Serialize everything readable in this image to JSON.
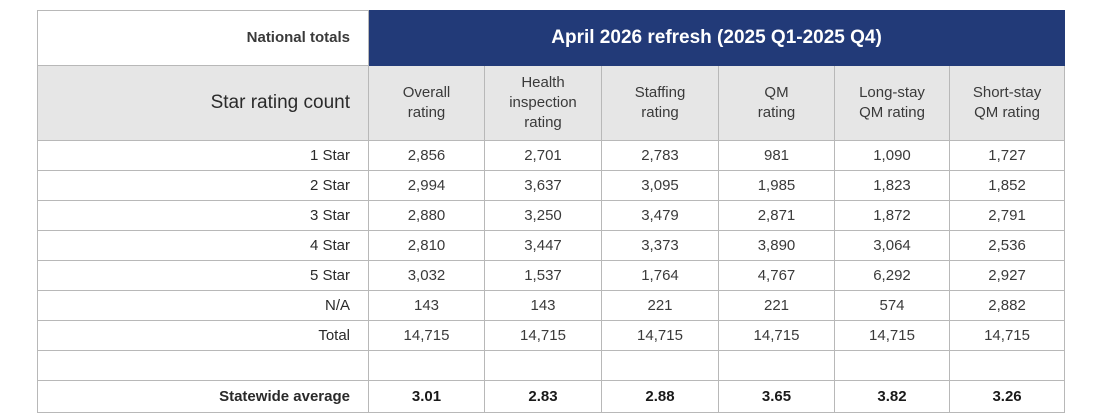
{
  "header": {
    "group_label": "National totals",
    "period_label": "April 2026 refresh (2025 Q1-2025 Q4)",
    "row_header": "Star rating count",
    "columns": [
      [
        "Overall",
        "rating"
      ],
      [
        "Health",
        "inspection",
        "rating"
      ],
      [
        "Staffing",
        "rating"
      ],
      [
        "QM",
        "rating"
      ],
      [
        "Long-stay",
        "QM rating"
      ],
      [
        "Short-stay",
        "QM rating"
      ]
    ]
  },
  "rows": [
    {
      "label": "1 Star",
      "values": [
        "2,856",
        "2,701",
        "2,783",
        "981",
        "1,090",
        "1,727"
      ]
    },
    {
      "label": "2 Star",
      "values": [
        "2,994",
        "3,637",
        "3,095",
        "1,985",
        "1,823",
        "1,852"
      ]
    },
    {
      "label": "3 Star",
      "values": [
        "2,880",
        "3,250",
        "3,479",
        "2,871",
        "1,872",
        "2,791"
      ]
    },
    {
      "label": "4 Star",
      "values": [
        "2,810",
        "3,447",
        "3,373",
        "3,890",
        "3,064",
        "2,536"
      ]
    },
    {
      "label": "5 Star",
      "values": [
        "3,032",
        "1,537",
        "1,764",
        "4,767",
        "6,292",
        "2,927"
      ]
    },
    {
      "label": "N/A",
      "values": [
        "143",
        "143",
        "221",
        "221",
        "574",
        "2,882"
      ]
    },
    {
      "label": "Total",
      "values": [
        "14,715",
        "14,715",
        "14,715",
        "14,715",
        "14,715",
        "14,715"
      ]
    }
  ],
  "average": {
    "label": "Statewide average",
    "values": [
      "3.01",
      "2.83",
      "2.88",
      "3.65",
      "3.82",
      "3.26"
    ]
  },
  "colors": {
    "header_fill": "#223a78",
    "subheader_fill": "#e6e6e6",
    "border": "#b8b8b8"
  }
}
